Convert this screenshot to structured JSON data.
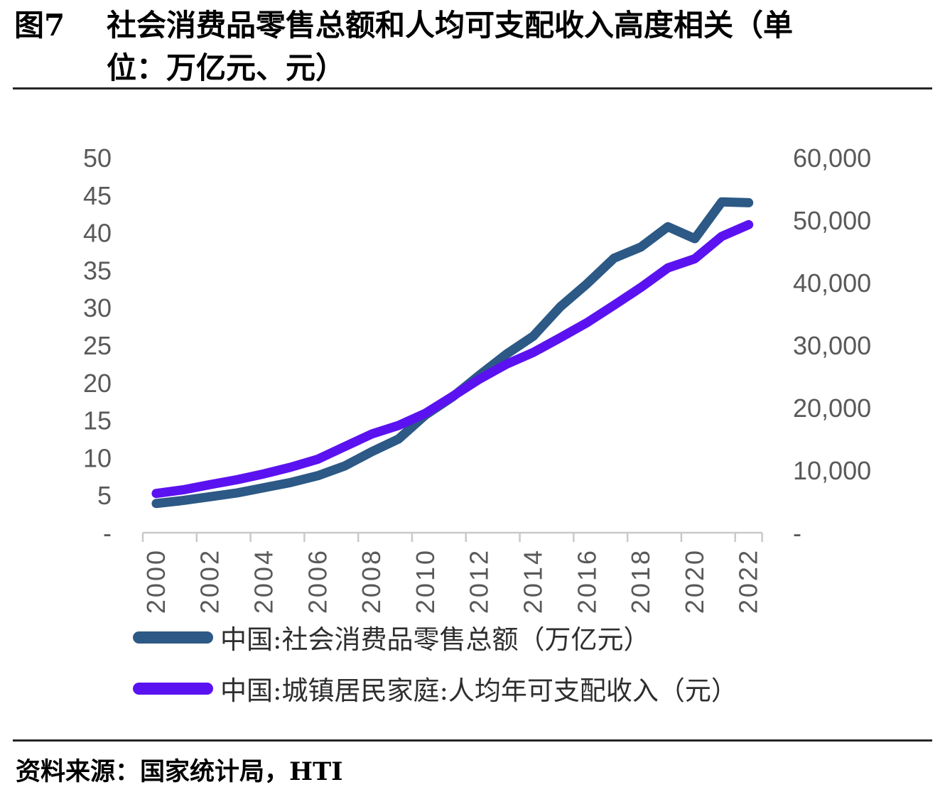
{
  "figure": {
    "label": "图7",
    "title_line1": "社会消费品零售总额和人均可支配收入高度相关（单",
    "title_line2": "位：万亿元、元）"
  },
  "source": {
    "text": "资料来源：国家统计局，HTI"
  },
  "legend": {
    "items": [
      {
        "label": "中国:社会消费品零售总额（万亿元）",
        "color": "#2C5985"
      },
      {
        "label": "中国:城镇居民家庭:人均年可支配收入（元）",
        "color": "#5B12F0"
      }
    ]
  },
  "colors": {
    "retail_line": "#2C5985",
    "income_line": "#5B12F0",
    "axis_text": "#595959",
    "axis_line": "#C9C9C9",
    "rule": "#262626"
  },
  "chart_data": {
    "type": "line",
    "title": "图7 社会消费品零售总额和人均可支配收入高度相关（单位：万亿元、元）",
    "x": [
      2000,
      2001,
      2002,
      2003,
      2004,
      2005,
      2006,
      2007,
      2008,
      2009,
      2010,
      2011,
      2012,
      2013,
      2014,
      2015,
      2016,
      2017,
      2018,
      2019,
      2020,
      2021,
      2022
    ],
    "x_tick_labels": [
      "2000",
      "2002",
      "2004",
      "2006",
      "2008",
      "2010",
      "2012",
      "2014",
      "2016",
      "2018",
      "2020",
      "2022"
    ],
    "series": [
      {
        "name": "中国:社会消费品零售总额（万亿元）",
        "axis": "left",
        "color": "#2C5985",
        "values": [
          3.9,
          4.3,
          4.8,
          5.3,
          6.0,
          6.7,
          7.6,
          8.9,
          10.8,
          12.5,
          15.7,
          18.1,
          21.0,
          23.8,
          26.2,
          30.1,
          33.2,
          36.6,
          38.1,
          40.8,
          39.2,
          44.1,
          44.0
        ]
      },
      {
        "name": "中国:城镇居民家庭:人均年可支配收入（元）",
        "axis": "right",
        "color": "#5B12F0",
        "values": [
          6280,
          6860,
          7703,
          8472,
          9422,
          10493,
          11759,
          13786,
          15781,
          17175,
          19109,
          21810,
          24565,
          26955,
          28844,
          31195,
          33616,
          36396,
          39251,
          42359,
          43834,
          47412,
          49283
        ]
      }
    ],
    "left_axis": {
      "max": 50,
      "min": 0,
      "tick_values": [
        50,
        45,
        40,
        35,
        30,
        25,
        20,
        15,
        10,
        5,
        0
      ],
      "tick_labels": [
        "50",
        "45",
        "40",
        "35",
        "30",
        "25",
        "20",
        "15",
        "10",
        "5",
        "-"
      ]
    },
    "right_axis": {
      "max": 60000,
      "min": 0,
      "tick_values": [
        60000,
        50000,
        40000,
        30000,
        20000,
        10000,
        0
      ],
      "tick_labels": [
        "60,000",
        "50,000",
        "40,000",
        "30,000",
        "20,000",
        "10,000",
        "-"
      ]
    },
    "grid": false,
    "legend_position": "bottom"
  }
}
